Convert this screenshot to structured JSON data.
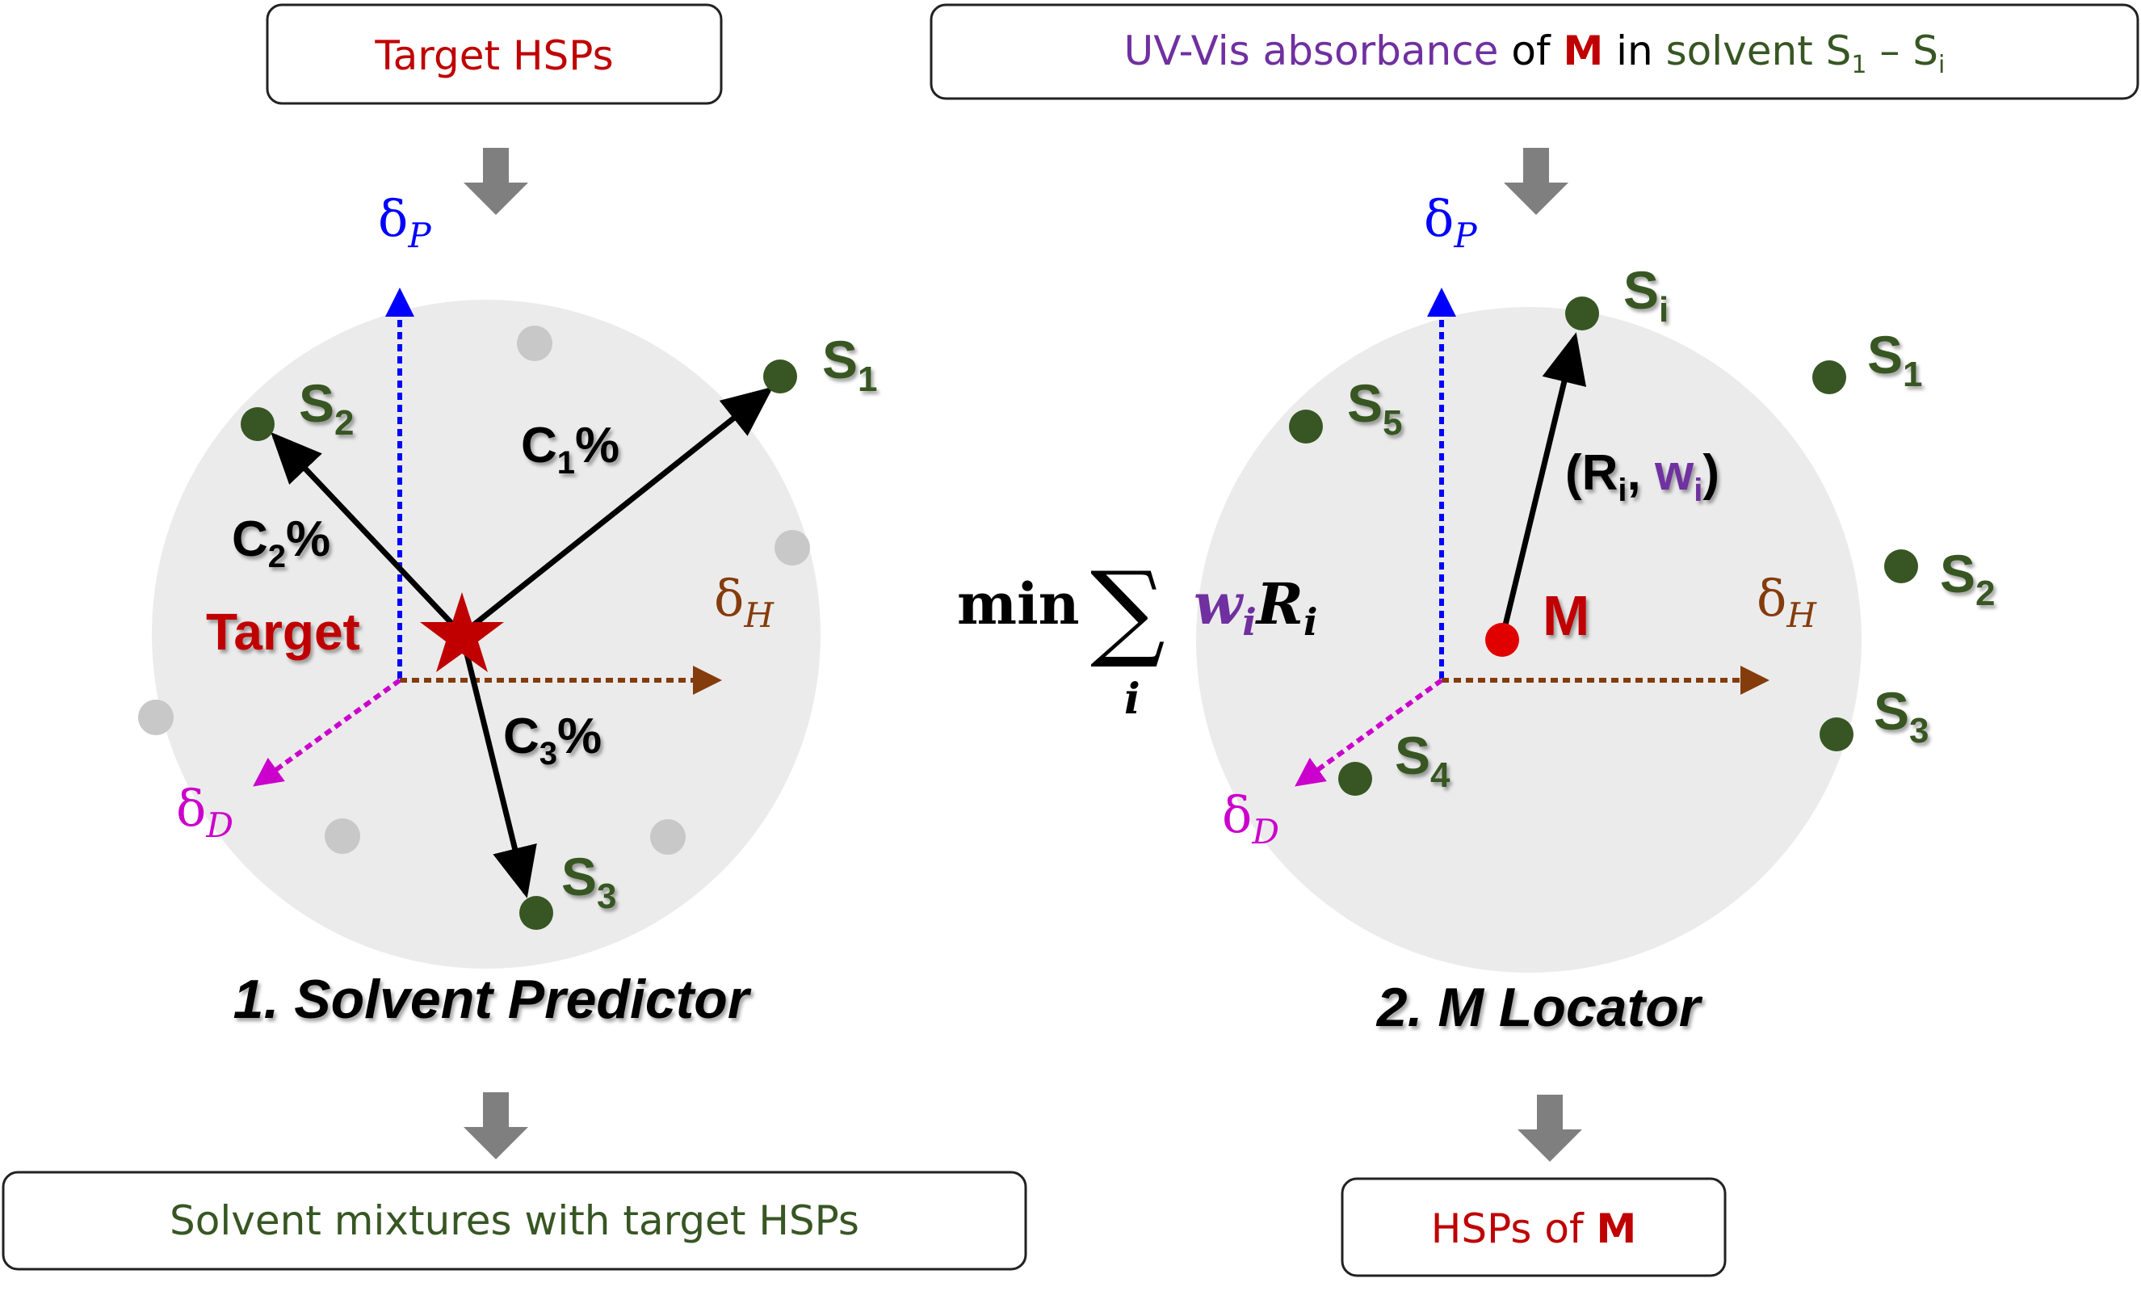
{
  "colors": {
    "target_red": "#c00000",
    "solvent_green": "#375623",
    "uv_purple": "#7030a0",
    "axis_blue": "#0000ff",
    "axis_brown": "#843c0c",
    "axis_magenta": "#cc00cc",
    "arrow_gray": "#7f7f7f",
    "sphere_gray": "#ebebeb",
    "dot_gray": "#c8c8c8"
  },
  "top_left_box": {
    "text": "Target HSPs"
  },
  "top_right_box": {
    "part1": "UV-Vis absorbance",
    "part2": " of ",
    "part3": "M",
    "part4": " in ",
    "part5": "solvent S",
    "sub1": "1",
    "part6": " – S",
    "subi": "i"
  },
  "bottom_left_box": {
    "text": "Solvent mixtures with target HSPs"
  },
  "bottom_right_box": {
    "part1": "HSPs of ",
    "part2": "M"
  },
  "left_diagram": {
    "caption": "1. Solvent Predictor",
    "target_label": "Target",
    "axes": {
      "p": "δ",
      "p_sub": "P",
      "h": "δ",
      "h_sub": "H",
      "d": "δ",
      "d_sub": "D"
    },
    "solvents": [
      {
        "s": "S",
        "sub": "1"
      },
      {
        "s": "S",
        "sub": "2"
      },
      {
        "s": "S",
        "sub": "3"
      }
    ],
    "fractions": [
      {
        "c": "C",
        "sub": "1",
        "pct": "%"
      },
      {
        "c": "C",
        "sub": "2",
        "pct": "%"
      },
      {
        "c": "C",
        "sub": "3",
        "pct": "%"
      }
    ]
  },
  "right_diagram": {
    "caption": "2. M Locator",
    "m_label": "M",
    "axes": {
      "p": "δ",
      "p_sub": "P",
      "h": "δ",
      "h_sub": "H",
      "d": "δ",
      "d_sub": "D"
    },
    "solvents": [
      {
        "s": "S",
        "sub": "i"
      },
      {
        "s": "S",
        "sub": "1"
      },
      {
        "s": "S",
        "sub": "5"
      },
      {
        "s": "S",
        "sub": "2"
      },
      {
        "s": "S",
        "sub": "3"
      },
      {
        "s": "S",
        "sub": "4"
      }
    ],
    "ri_label": {
      "open": "(R",
      "sub_r": "i",
      "comma": ", ",
      "w": "w",
      "sub_w": "i",
      "close": ")"
    },
    "formula": {
      "min": "min",
      "sum": "∑",
      "sum_index": "i",
      "w": "w",
      "w_sub": "i",
      "r": "R",
      "r_sub": "i"
    }
  }
}
